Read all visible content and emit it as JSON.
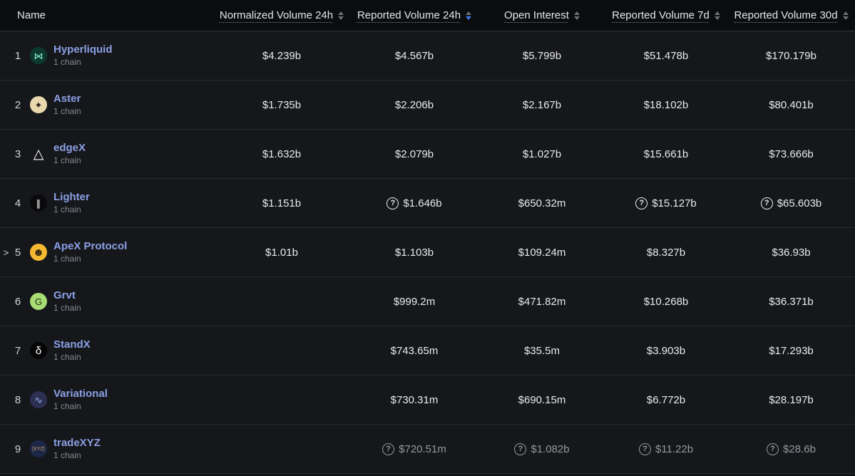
{
  "header": {
    "columns": [
      {
        "key": "name",
        "label": "Name",
        "sortable": false,
        "sort": "none"
      },
      {
        "key": "normalized_24h",
        "label": "Normalized Volume 24h",
        "sortable": true,
        "sort": "none"
      },
      {
        "key": "reported_24h",
        "label": "Reported Volume 24h",
        "sortable": true,
        "sort": "desc"
      },
      {
        "key": "open_interest",
        "label": "Open Interest",
        "sortable": true,
        "sort": "none"
      },
      {
        "key": "reported_7d",
        "label": "Reported Volume 7d",
        "sortable": true,
        "sort": "none"
      },
      {
        "key": "reported_30d",
        "label": "Reported Volume 30d",
        "sortable": true,
        "sort": "none"
      }
    ]
  },
  "icons": {
    "question_mark": "?",
    "chevron_right": ">"
  },
  "colors": {
    "sort_active": "#3f7ef7",
    "link": "#8b9fe4",
    "value_text": "#e9eaec",
    "muted_text": "#96989e",
    "row_bg": "#16171b",
    "header_bg": "#0b0c0e"
  },
  "rows": [
    {
      "rank": "1",
      "name": "Hyperliquid",
      "chains": "1 chain",
      "expandable": false,
      "muted": false,
      "icon": {
        "name": "hyperliquid-logo-icon",
        "glyph": "⋈",
        "bg": "#0d392d",
        "color": "#8df5d8",
        "font_size": "13px"
      },
      "values": {
        "normalized_24h": {
          "text": "$4.239b",
          "estimated": false
        },
        "reported_24h": {
          "text": "$4.567b",
          "estimated": false
        },
        "open_interest": {
          "text": "$5.799b",
          "estimated": false
        },
        "reported_7d": {
          "text": "$51.478b",
          "estimated": false
        },
        "reported_30d": {
          "text": "$170.179b",
          "estimated": false
        }
      }
    },
    {
      "rank": "2",
      "name": "Aster",
      "chains": "1 chain",
      "expandable": false,
      "muted": false,
      "icon": {
        "name": "aster-logo-icon",
        "glyph": "✦",
        "bg": "#e9d7ad",
        "color": "#26211a",
        "font_size": "13px"
      },
      "values": {
        "normalized_24h": {
          "text": "$1.735b",
          "estimated": false
        },
        "reported_24h": {
          "text": "$2.206b",
          "estimated": false
        },
        "open_interest": {
          "text": "$2.167b",
          "estimated": false
        },
        "reported_7d": {
          "text": "$18.102b",
          "estimated": false
        },
        "reported_30d": {
          "text": "$80.401b",
          "estimated": false
        }
      }
    },
    {
      "rank": "3",
      "name": "edgeX",
      "chains": "1 chain",
      "expandable": false,
      "muted": false,
      "icon": {
        "name": "edgex-logo-icon",
        "glyph": "△",
        "bg": "transparent",
        "color": "#ffffff",
        "font_size": "19px"
      },
      "values": {
        "normalized_24h": {
          "text": "$1.632b",
          "estimated": false
        },
        "reported_24h": {
          "text": "$2.079b",
          "estimated": false
        },
        "open_interest": {
          "text": "$1.027b",
          "estimated": false
        },
        "reported_7d": {
          "text": "$15.661b",
          "estimated": false
        },
        "reported_30d": {
          "text": "$73.666b",
          "estimated": false
        }
      }
    },
    {
      "rank": "4",
      "name": "Lighter",
      "chains": "1 chain",
      "expandable": false,
      "muted": false,
      "icon": {
        "name": "lighter-logo-icon",
        "glyph": "∥",
        "bg": "#0a0a0c",
        "color": "#ffffff",
        "font_size": "13px"
      },
      "values": {
        "normalized_24h": {
          "text": "$1.151b",
          "estimated": false
        },
        "reported_24h": {
          "text": "$1.646b",
          "estimated": true
        },
        "open_interest": {
          "text": "$650.32m",
          "estimated": false
        },
        "reported_7d": {
          "text": "$15.127b",
          "estimated": true
        },
        "reported_30d": {
          "text": "$65.603b",
          "estimated": true
        }
      }
    },
    {
      "rank": "5",
      "name": "ApeX Protocol",
      "chains": "1 chain",
      "expandable": true,
      "muted": false,
      "icon": {
        "name": "apex-protocol-logo-icon",
        "glyph": "☻",
        "bg": "#f5b831",
        "color": "#2a2212",
        "font_size": "15px"
      },
      "values": {
        "normalized_24h": {
          "text": "$1.01b",
          "estimated": false
        },
        "reported_24h": {
          "text": "$1.103b",
          "estimated": false
        },
        "open_interest": {
          "text": "$109.24m",
          "estimated": false
        },
        "reported_7d": {
          "text": "$8.327b",
          "estimated": false
        },
        "reported_30d": {
          "text": "$36.93b",
          "estimated": false
        }
      }
    },
    {
      "rank": "6",
      "name": "Grvt",
      "chains": "1 chain",
      "expandable": false,
      "muted": false,
      "icon": {
        "name": "grvt-logo-icon",
        "glyph": "G",
        "bg": "#a7dd74",
        "color": "#203016",
        "font_size": "13px"
      },
      "values": {
        "normalized_24h": null,
        "reported_24h": {
          "text": "$999.2m",
          "estimated": false
        },
        "open_interest": {
          "text": "$471.82m",
          "estimated": false
        },
        "reported_7d": {
          "text": "$10.268b",
          "estimated": false
        },
        "reported_30d": {
          "text": "$36.371b",
          "estimated": false
        }
      }
    },
    {
      "rank": "7",
      "name": "StandX",
      "chains": "1 chain",
      "expandable": false,
      "muted": false,
      "icon": {
        "name": "standx-logo-icon",
        "glyph": "δ",
        "bg": "#050506",
        "color": "#ffffff",
        "font_size": "15px"
      },
      "values": {
        "normalized_24h": null,
        "reported_24h": {
          "text": "$743.65m",
          "estimated": false
        },
        "open_interest": {
          "text": "$35.5m",
          "estimated": false
        },
        "reported_7d": {
          "text": "$3.903b",
          "estimated": false
        },
        "reported_30d": {
          "text": "$17.293b",
          "estimated": false
        }
      }
    },
    {
      "rank": "8",
      "name": "Variational",
      "chains": "1 chain",
      "expandable": false,
      "muted": false,
      "icon": {
        "name": "variational-logo-icon",
        "glyph": "∿",
        "bg": "#2b3052",
        "color": "#9db1ea",
        "font_size": "14px"
      },
      "values": {
        "normalized_24h": null,
        "reported_24h": {
          "text": "$730.31m",
          "estimated": false
        },
        "open_interest": {
          "text": "$690.15m",
          "estimated": false
        },
        "reported_7d": {
          "text": "$6.772b",
          "estimated": false
        },
        "reported_30d": {
          "text": "$28.197b",
          "estimated": false
        }
      }
    },
    {
      "rank": "9",
      "name": "tradeXYZ",
      "chains": "1 chain",
      "expandable": false,
      "muted": true,
      "icon": {
        "name": "tradexyz-logo-icon",
        "glyph": "[XYZ]",
        "bg": "#1c2747",
        "color": "#caa558",
        "font_size": "7px"
      },
      "values": {
        "normalized_24h": null,
        "reported_24h": {
          "text": "$720.51m",
          "estimated": true
        },
        "open_interest": {
          "text": "$1.082b",
          "estimated": true
        },
        "reported_7d": {
          "text": "$11.22b",
          "estimated": true
        },
        "reported_30d": {
          "text": "$28.6b",
          "estimated": true
        }
      }
    }
  ]
}
